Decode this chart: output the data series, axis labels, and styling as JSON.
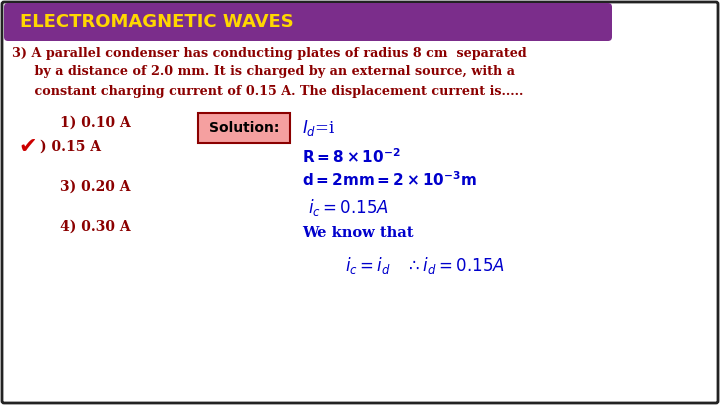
{
  "title": "ELECTROMAGNETIC WAVES",
  "title_bg": "#7B2D8B",
  "title_color": "#FFD700",
  "bg_color": "#FFFFFF",
  "border_color": "#222222",
  "question_color": "#8B0000",
  "solution_color": "#0000CC",
  "solution_box_bg": "#F5A0A0",
  "solution_box_edge": "#8B0000",
  "checkmark_color": "#CC0000",
  "q_line1": "3) A parallel condenser has conducting plates of radius 8 cm  separated",
  "q_line2": "     by a distance of 2.0 mm. It is charged by an external source, with a",
  "q_line3": "     constant charging current of 0.15 A. The displacement current is.....",
  "opt1": "1) 0.10 A",
  "opt2": ") 0.15 A",
  "opt3": "3) 0.20 A",
  "opt4": "4) 0.30 A",
  "sol_label": "Solution:",
  "sol_id": "$I_d$=i",
  "sol_R": "$R = 8\\times10^{-2}$",
  "sol_d": "$d = 2mm = 2\\times10^{-3}m$",
  "sol_ic": "$i_c = 0.15A$",
  "sol_weknow": "We know that",
  "sol_final": "$i_c = i_d \\quad \\therefore i_d = 0.15A$"
}
